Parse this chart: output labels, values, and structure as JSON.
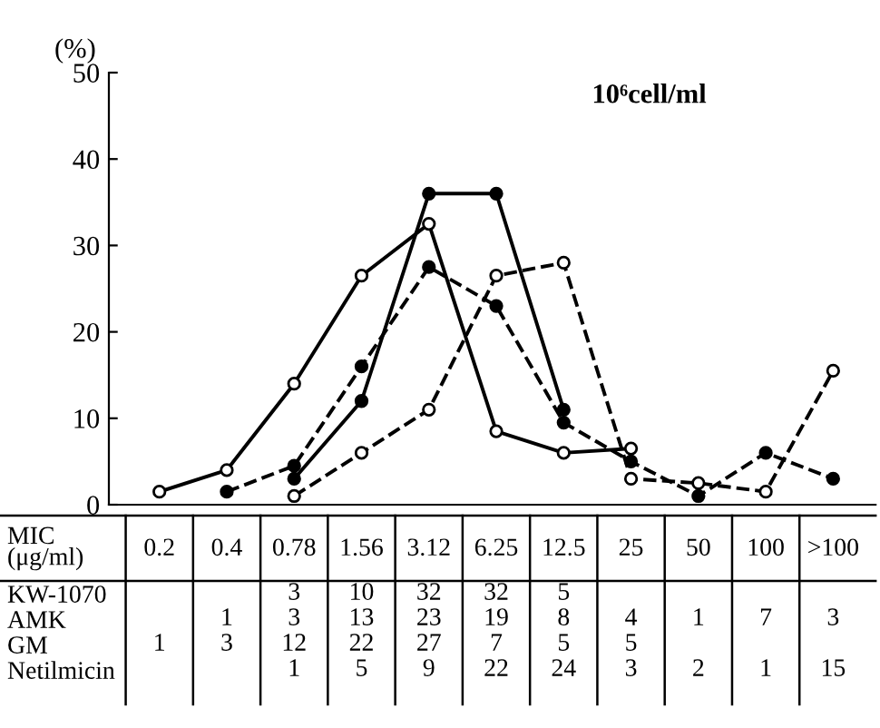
{
  "chart_data": [
    {
      "type": "line",
      "ylabel": "(%)",
      "annotations": [
        "10⁶cell/ml"
      ],
      "categories": [
        null,
        null,
        null,
        null,
        null,
        null,
        null,
        null,
        null,
        null,
        null
      ],
      "ylim": [
        0,
        50
      ],
      "yticks": [
        0,
        10,
        20,
        30,
        40,
        50
      ],
      "grid": false,
      "marker": "circle",
      "series": [
        {
          "color": "#000000",
          "line_style": "solid",
          "values": [
            null,
            null,
            3,
            12,
            36,
            36,
            11,
            null,
            null,
            null,
            null
          ]
        },
        {
          "color": "#000000",
          "line_style": "dashed",
          "values": [
            null,
            1.5,
            4.5,
            16,
            27.5,
            23,
            9.5,
            5,
            1,
            6,
            3
          ]
        },
        {
          "color": "#ffffff",
          "line_style": "solid",
          "values": [
            1.5,
            4,
            14,
            26.5,
            32.5,
            8.5,
            6,
            6.5,
            null,
            null,
            null
          ]
        },
        {
          "color": "#ffffff",
          "line_style": "dashed",
          "values": [
            null,
            null,
            1,
            6,
            11,
            26.5,
            28,
            3,
            2.5,
            1.5,
            15.5
          ]
        }
      ]
    },
    {
      "type": "heatmap",
      "xlabel": "MIC (μg/ml)",
      "data_labels": true,
      "categories": [
        "0.2",
        "0.4",
        "0.78",
        "1.56",
        "3.12",
        "6.25",
        "12.5",
        "25",
        "50",
        "100",
        ">100"
      ],
      "y_categories": [
        "KW-1070",
        "AMK",
        "GM",
        "Netilmicin"
      ],
      "cells": [
        [
          null,
          null,
          3,
          10,
          32,
          32,
          5,
          null,
          null,
          null,
          null
        ],
        [
          null,
          1,
          3,
          13,
          23,
          19,
          8,
          4,
          1,
          7,
          3
        ],
        [
          1,
          3,
          12,
          22,
          27,
          7,
          5,
          5,
          null,
          null,
          null
        ],
        [
          null,
          null,
          1,
          5,
          9,
          22,
          24,
          3,
          2,
          1,
          15
        ]
      ]
    }
  ]
}
